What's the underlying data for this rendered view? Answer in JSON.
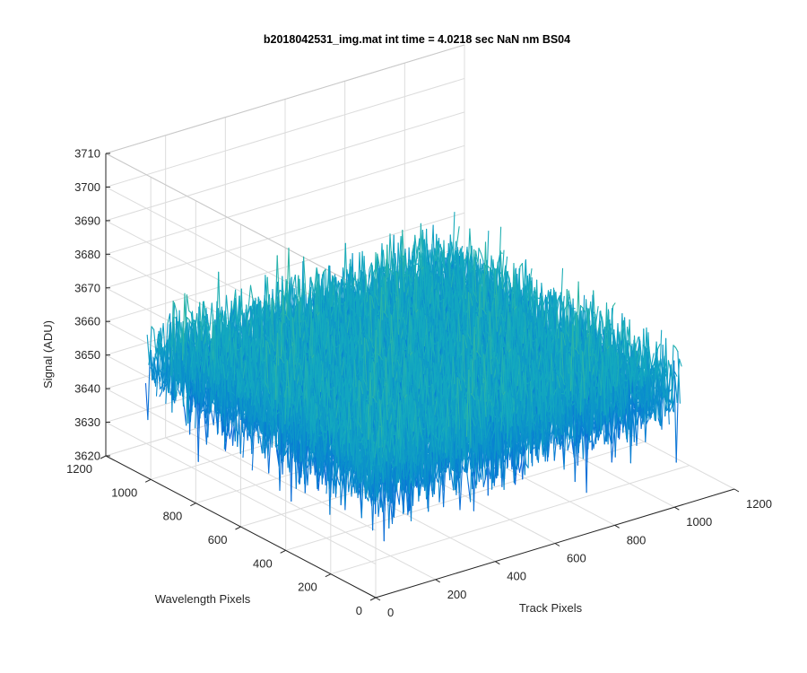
{
  "chart_data": {
    "type": "surface",
    "title": "b2018042531_img.mat int time = 4.0218 sec  NaN nm BS04",
    "zlabel": "Signal (ADU)",
    "xlabel": "Track Pixels",
    "ylabel": "Wavelength Pixels",
    "xlim": [
      0,
      1200
    ],
    "ylim": [
      0,
      1200
    ],
    "zlim": [
      3620,
      3710
    ],
    "x_ticks": [
      "0",
      "200",
      "400",
      "600",
      "800",
      "1000",
      "1200"
    ],
    "y_ticks": [
      "0",
      "200",
      "400",
      "600",
      "800",
      "1000",
      "1200"
    ],
    "z_ticks": [
      "3620",
      "3630",
      "3640",
      "3650",
      "3660",
      "3670",
      "3680",
      "3690",
      "3700",
      "3710"
    ],
    "grid": "on",
    "colormap": "parula",
    "data_extent": {
      "x": [
        1,
        1024
      ],
      "y": [
        1,
        1024
      ]
    },
    "signal_mean": 3655,
    "signal_range": [
      3630,
      3700
    ],
    "colors": {
      "low": "#0b72c7",
      "mid": "#17b3b0",
      "high": "#eac13a"
    }
  }
}
